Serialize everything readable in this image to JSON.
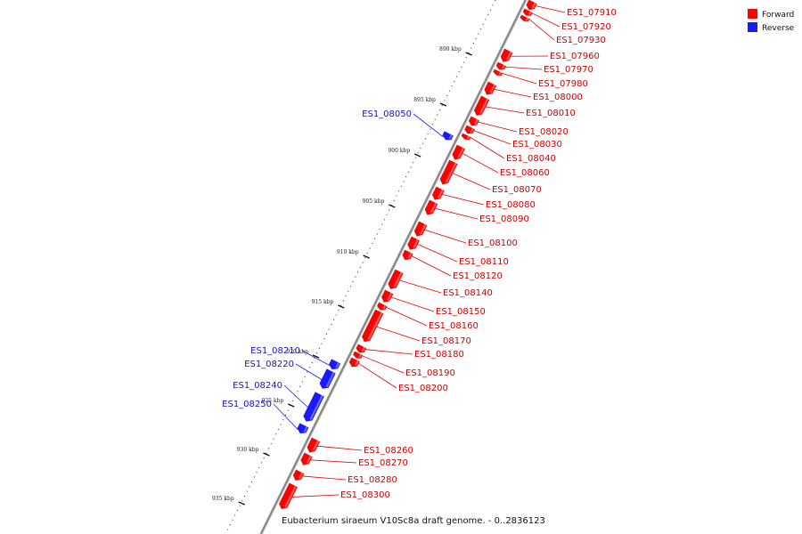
{
  "colors": {
    "forward": "#ff0000",
    "reverse": "#1a1aff",
    "backbone": "#888888",
    "label_forward": "#cc0000",
    "label_reverse": "#1414b4"
  },
  "legend": [
    {
      "key": "forward",
      "label": "Forward"
    },
    {
      "key": "reverse",
      "label": "Reverse"
    }
  ],
  "caption": "Eubacterium siraeum V10Sc8a draft genome. - 0..2836123",
  "scale": {
    "unit": "kbp",
    "ticks": [
      "890 kbp",
      "895 kbp",
      "900 kbp",
      "905 kbp",
      "910 kbp",
      "915 kbp",
      "920 kbp",
      "925 kbp",
      "930 kbp",
      "935 kbp"
    ]
  },
  "genes": [
    {
      "name": "ES1_07910",
      "strand": "forward"
    },
    {
      "name": "ES1_07920",
      "strand": "forward"
    },
    {
      "name": "ES1_07930",
      "strand": "forward"
    },
    {
      "name": "ES1_07960",
      "strand": "forward"
    },
    {
      "name": "ES1_07970",
      "strand": "forward"
    },
    {
      "name": "ES1_07980",
      "strand": "forward"
    },
    {
      "name": "ES1_08000",
      "strand": "forward"
    },
    {
      "name": "ES1_08010",
      "strand": "forward"
    },
    {
      "name": "ES1_08020",
      "strand": "forward"
    },
    {
      "name": "ES1_08030",
      "strand": "forward"
    },
    {
      "name": "ES1_08040",
      "strand": "forward"
    },
    {
      "name": "ES1_08060",
      "strand": "forward"
    },
    {
      "name": "ES1_08070",
      "strand": "forward"
    },
    {
      "name": "ES1_08080",
      "strand": "forward"
    },
    {
      "name": "ES1_08090",
      "strand": "forward"
    },
    {
      "name": "ES1_08100",
      "strand": "forward"
    },
    {
      "name": "ES1_08110",
      "strand": "forward"
    },
    {
      "name": "ES1_08120",
      "strand": "forward"
    },
    {
      "name": "ES1_08140",
      "strand": "forward"
    },
    {
      "name": "ES1_08150",
      "strand": "forward"
    },
    {
      "name": "ES1_08160",
      "strand": "forward"
    },
    {
      "name": "ES1_08170",
      "strand": "forward"
    },
    {
      "name": "ES1_08180",
      "strand": "forward"
    },
    {
      "name": "ES1_08190",
      "strand": "forward"
    },
    {
      "name": "ES1_08200",
      "strand": "forward"
    },
    {
      "name": "ES1_08260",
      "strand": "forward"
    },
    {
      "name": "ES1_08270",
      "strand": "forward"
    },
    {
      "name": "ES1_08280",
      "strand": "forward"
    },
    {
      "name": "ES1_08300",
      "strand": "forward"
    },
    {
      "name": "ES1_08050",
      "strand": "reverse"
    },
    {
      "name": "ES1_08210",
      "strand": "reverse"
    },
    {
      "name": "ES1_08220",
      "strand": "reverse"
    },
    {
      "name": "ES1_08240",
      "strand": "reverse"
    },
    {
      "name": "ES1_08250",
      "strand": "reverse"
    }
  ]
}
